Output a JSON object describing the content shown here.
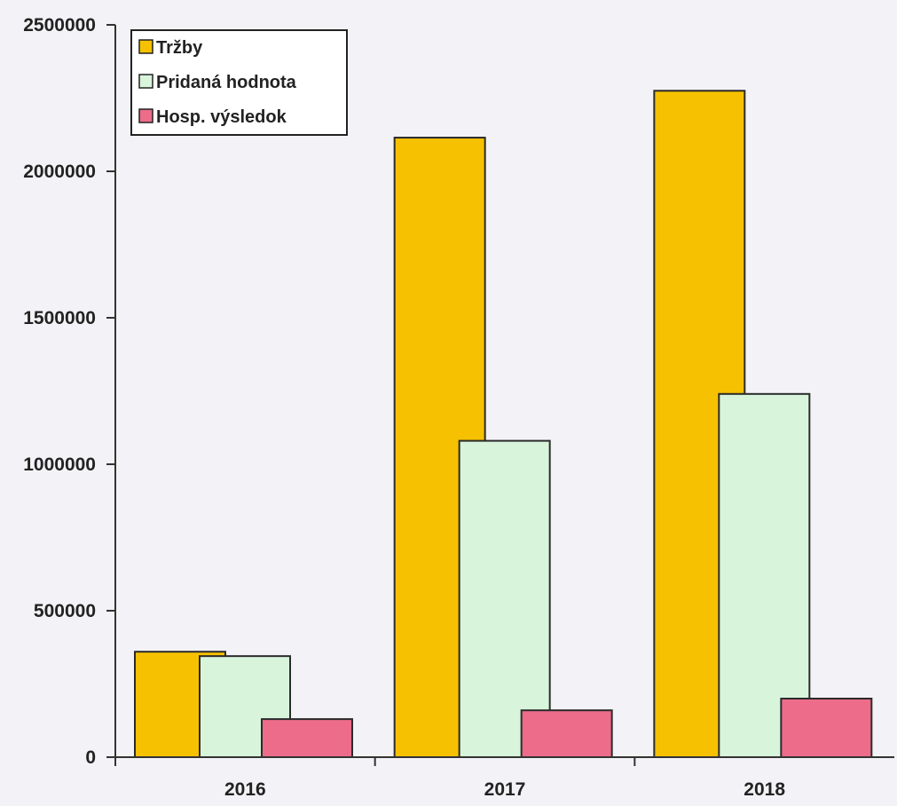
{
  "chart_data": {
    "type": "bar",
    "categories": [
      "2016",
      "2017",
      "2018"
    ],
    "series": [
      {
        "name": "Tržby",
        "color": "#f6c100",
        "values": [
          360000,
          2115000,
          2275000
        ]
      },
      {
        "name": "Pridaná hodnota",
        "color": "#d8f5dc",
        "values": [
          345000,
          1080000,
          1240000
        ]
      },
      {
        "name": "Hosp. výsledok",
        "color": "#ec6c8a",
        "values": [
          130000,
          160000,
          200000
        ]
      }
    ],
    "y_ticks": [
      "0",
      "500000",
      "1000000",
      "1500000",
      "2000000",
      "2500000"
    ],
    "ylim": [
      0,
      2500000
    ],
    "title": "",
    "xlabel": "",
    "ylabel": "",
    "grid": false,
    "legend_position": "top-left"
  }
}
